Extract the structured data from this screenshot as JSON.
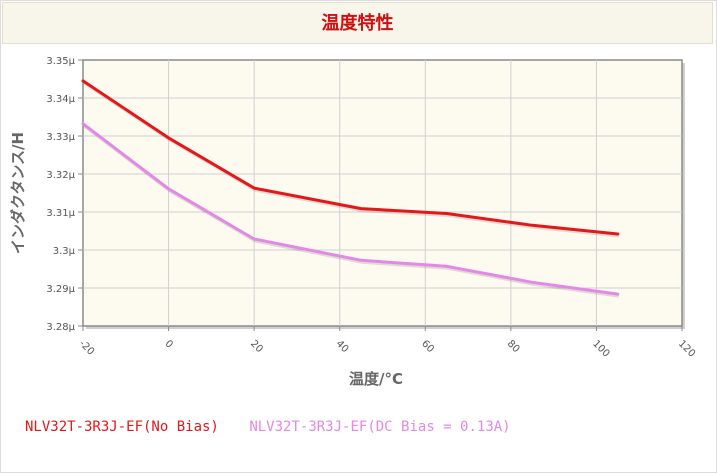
{
  "header": {
    "title": "温度特性"
  },
  "legend": {
    "series1": "NLV32T-3R3J-EF(No Bias)",
    "series2": "NLV32T-3R3J-EF(DC Bias = 0.13A)"
  },
  "colors": {
    "series1": "#e3181a",
    "series2": "#e488e8",
    "plot_background": "#fdfaf0",
    "grid": "#d0d0d0"
  },
  "chart_data": {
    "type": "line",
    "title": "温度特性",
    "xlabel": "温度/°C",
    "ylabel": "インダクタンス/H",
    "xlim": [
      -20,
      120
    ],
    "ylim": [
      3.28,
      3.35
    ],
    "x_ticks": [
      "-20",
      "0",
      "20",
      "40",
      "60",
      "80",
      "100",
      "120"
    ],
    "x_tick_values": [
      -20,
      0,
      20,
      40,
      60,
      80,
      100,
      120
    ],
    "y_ticks": [
      "3.28µ",
      "3.29µ",
      "3.3µ",
      "3.31µ",
      "3.32µ",
      "3.33µ",
      "3.34µ",
      "3.35µ"
    ],
    "y_tick_values": [
      3.28,
      3.29,
      3.3,
      3.31,
      3.32,
      3.33,
      3.34,
      3.35
    ],
    "grid": true,
    "legend_position": "bottom",
    "series": [
      {
        "name": "NLV32T-3R3J-EF(No Bias)",
        "x": [
          -20,
          0,
          20,
          45,
          65,
          85,
          105
        ],
        "y": [
          3.3445,
          3.3295,
          3.3163,
          3.3109,
          3.3096,
          3.3065,
          3.3042
        ]
      },
      {
        "name": "NLV32T-3R3J-EF(DC Bias = 0.13A)",
        "x": [
          -20,
          0,
          20,
          45,
          65,
          85,
          105
        ],
        "y": [
          3.3332,
          3.3161,
          3.3029,
          3.2973,
          3.2957,
          3.2915,
          3.2884
        ]
      }
    ]
  }
}
